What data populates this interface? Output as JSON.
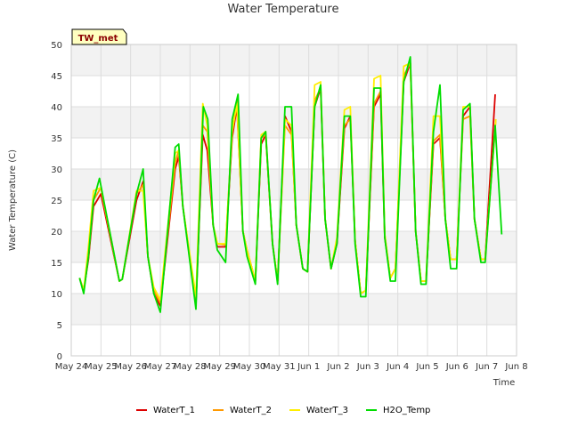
{
  "chart_data": {
    "type": "line",
    "title": "Water Temperature",
    "xlabel": "Time",
    "ylabel": "Water Temperature (C)",
    "station_label": "TW_met",
    "ylim": [
      0,
      50
    ],
    "yticks": [
      0,
      5,
      10,
      15,
      20,
      25,
      30,
      35,
      40,
      45,
      50
    ],
    "xlim": [
      "May 24",
      "Jun 8"
    ],
    "xticks": [
      "May 24",
      "May 25",
      "May 26",
      "May 27",
      "May 28",
      "May 29",
      "May 30",
      "May 31",
      "Jun 1",
      "Jun 2",
      "Jun 3",
      "Jun 4",
      "Jun 5",
      "Jun 6",
      "Jun 7",
      "Jun 8"
    ],
    "grid": true,
    "legend_position": "bottom",
    "background_bands": "alternating light gray",
    "series": [
      {
        "name": "WaterT_1",
        "color": "#dd0000",
        "x": [
          0.28,
          0.42,
          0.58,
          0.75,
          1.0,
          1.62,
          1.72,
          2.2,
          2.42,
          2.58,
          2.78,
          3.0,
          3.5,
          3.62,
          3.76,
          4.2,
          4.43,
          4.58,
          4.78,
          4.92,
          5.2,
          5.42,
          5.58,
          5.78,
          5.92,
          6.2,
          6.4,
          6.55,
          6.78,
          6.95,
          7.2,
          7.42,
          7.58,
          7.8,
          7.96,
          8.2,
          8.4,
          8.55,
          8.75,
          8.95,
          9.2,
          9.4,
          9.56,
          9.75,
          9.92,
          10.2,
          10.42,
          10.56,
          10.75,
          10.92,
          11.2,
          11.42,
          11.6,
          11.78,
          11.95,
          12.2,
          12.42,
          12.6,
          12.78,
          12.98,
          13.2,
          13.43,
          13.58,
          13.8,
          13.94,
          14.28
        ],
        "y": [
          12.5,
          10.5,
          15.5,
          24.0,
          26.0,
          12.0,
          12.3,
          25.0,
          28.0,
          16.0,
          10.0,
          8.0,
          30.0,
          32.0,
          24.0,
          8.5,
          35.5,
          33.0,
          21.0,
          17.5,
          17.5,
          35.0,
          40.0,
          20.0,
          17.0,
          12.0,
          34.0,
          35.5,
          18.0,
          12.0,
          38.5,
          36.0,
          21.0,
          14.0,
          13.5,
          40.0,
          43.0,
          22.0,
          14.0,
          18.0,
          36.5,
          38.5,
          18.5,
          10.0,
          10.5,
          40.0,
          42.0,
          19.0,
          12.5,
          14.0,
          44.0,
          47.0,
          20.0,
          12.0,
          12.0,
          34.0,
          35.0,
          22.0,
          15.5,
          15.5,
          38.5,
          40.0,
          22.0,
          15.5,
          15.5,
          42.0
        ]
      },
      {
        "name": "WaterT_2",
        "color": "#ff9900",
        "x": [
          0.28,
          0.42,
          0.58,
          0.75,
          1.0,
          1.62,
          1.72,
          2.2,
          2.42,
          2.58,
          2.78,
          3.0,
          3.5,
          3.62,
          3.76,
          4.2,
          4.43,
          4.58,
          4.78,
          4.92,
          5.2,
          5.42,
          5.58,
          5.78,
          5.92,
          6.2,
          6.4,
          6.55,
          6.78,
          6.95,
          7.2,
          7.42,
          7.58,
          7.8,
          7.96,
          8.2,
          8.4,
          8.55,
          8.75,
          8.95,
          9.2,
          9.4,
          9.56,
          9.75,
          9.92,
          10.2,
          10.42,
          10.56,
          10.75,
          10.92,
          11.2,
          11.42,
          11.6,
          11.78,
          11.95,
          12.2,
          12.42,
          12.6,
          12.78,
          12.98,
          13.2,
          13.43,
          13.58,
          13.8,
          13.94,
          14.3
        ],
        "y": [
          12.5,
          10.5,
          16.0,
          25.0,
          27.0,
          12.0,
          12.3,
          26.0,
          27.5,
          16.0,
          10.5,
          8.5,
          31.0,
          33.0,
          24.0,
          9.0,
          37.0,
          36.0,
          21.0,
          18.0,
          17.8,
          36.0,
          41.0,
          20.0,
          17.0,
          12.0,
          35.0,
          35.5,
          18.0,
          12.0,
          37.0,
          35.5,
          21.0,
          14.0,
          13.5,
          41.0,
          43.0,
          22.0,
          14.0,
          18.5,
          37.0,
          38.0,
          18.5,
          10.0,
          10.5,
          40.5,
          42.5,
          19.5,
          12.5,
          14.0,
          45.0,
          47.0,
          20.0,
          12.0,
          12.0,
          34.5,
          35.5,
          22.0,
          15.5,
          15.5,
          38.0,
          38.5,
          22.0,
          15.5,
          15.5,
          38.0
        ]
      },
      {
        "name": "WaterT_3",
        "color": "#ffee00",
        "x": [
          0.28,
          0.42,
          0.58,
          0.75,
          1.0,
          1.62,
          1.72,
          2.2,
          2.42,
          2.58,
          2.78,
          3.0,
          3.5,
          3.62,
          3.76,
          4.2,
          4.43,
          4.58,
          4.78,
          4.92,
          5.2,
          5.42,
          5.58,
          5.78,
          5.92,
          6.2,
          6.4,
          6.55,
          6.78,
          6.95,
          7.2,
          7.42,
          7.58,
          7.8,
          7.96,
          8.2,
          8.4,
          8.55,
          8.75,
          8.95,
          9.2,
          9.4,
          9.56,
          9.75,
          9.92,
          10.2,
          10.42,
          10.56,
          10.75,
          10.92,
          11.2,
          11.42,
          11.6,
          11.78,
          11.95,
          12.2,
          12.42,
          12.6,
          12.78,
          12.98,
          13.2,
          13.43,
          13.58,
          13.8,
          13.94,
          14.3
        ],
        "y": [
          12.5,
          10.5,
          17.5,
          26.5,
          27.0,
          12.0,
          12.3,
          26.5,
          26.5,
          16.0,
          11.0,
          9.0,
          32.5,
          33.0,
          24.0,
          9.5,
          40.5,
          37.0,
          21.0,
          18.0,
          18.0,
          36.0,
          40.5,
          20.0,
          17.0,
          12.0,
          35.5,
          36.0,
          18.0,
          12.0,
          38.0,
          37.0,
          21.0,
          14.0,
          13.5,
          43.5,
          44.0,
          22.0,
          14.0,
          19.0,
          39.5,
          40.0,
          18.5,
          10.0,
          10.5,
          44.5,
          45.0,
          19.5,
          12.5,
          14.0,
          46.5,
          47.0,
          20.0,
          12.0,
          12.0,
          38.5,
          38.5,
          22.0,
          15.5,
          15.5,
          40.0,
          40.0,
          22.0,
          15.5,
          15.5,
          38.0
        ]
      },
      {
        "name": "H2O_Temp",
        "color": "#00dd00",
        "x": [
          0.28,
          0.42,
          0.58,
          0.75,
          0.95,
          1.62,
          1.72,
          2.2,
          2.42,
          2.58,
          2.78,
          3.0,
          3.5,
          3.62,
          3.76,
          4.2,
          4.45,
          4.6,
          4.78,
          4.92,
          5.2,
          5.42,
          5.62,
          5.78,
          5.92,
          6.2,
          6.4,
          6.55,
          6.78,
          6.95,
          7.2,
          7.42,
          7.58,
          7.8,
          7.96,
          8.2,
          8.4,
          8.55,
          8.75,
          8.95,
          9.2,
          9.4,
          9.56,
          9.75,
          9.92,
          10.2,
          10.42,
          10.56,
          10.75,
          10.92,
          11.2,
          11.42,
          11.6,
          11.78,
          11.95,
          12.2,
          12.42,
          12.6,
          12.78,
          12.98,
          13.2,
          13.43,
          13.58,
          13.8,
          13.94,
          14.28,
          14.5
        ],
        "y": [
          12.5,
          10.0,
          16.0,
          25.0,
          28.5,
          12.0,
          12.3,
          26.0,
          30.0,
          16.0,
          10.0,
          7.0,
          33.5,
          34.0,
          24.0,
          7.5,
          40.0,
          38.0,
          21.0,
          17.0,
          15.0,
          38.0,
          42.0,
          20.0,
          16.0,
          11.5,
          35.0,
          36.0,
          18.0,
          11.5,
          40.0,
          40.0,
          21.0,
          14.0,
          13.5,
          40.0,
          43.5,
          22.0,
          14.0,
          18.0,
          38.5,
          38.5,
          18.0,
          9.5,
          9.5,
          43.0,
          43.0,
          19.0,
          12.0,
          12.0,
          44.0,
          48.0,
          20.0,
          11.5,
          11.5,
          36.0,
          43.5,
          22.0,
          14.0,
          14.0,
          39.5,
          40.5,
          22.0,
          15.0,
          15.0,
          37.0,
          19.5
        ]
      }
    ]
  }
}
